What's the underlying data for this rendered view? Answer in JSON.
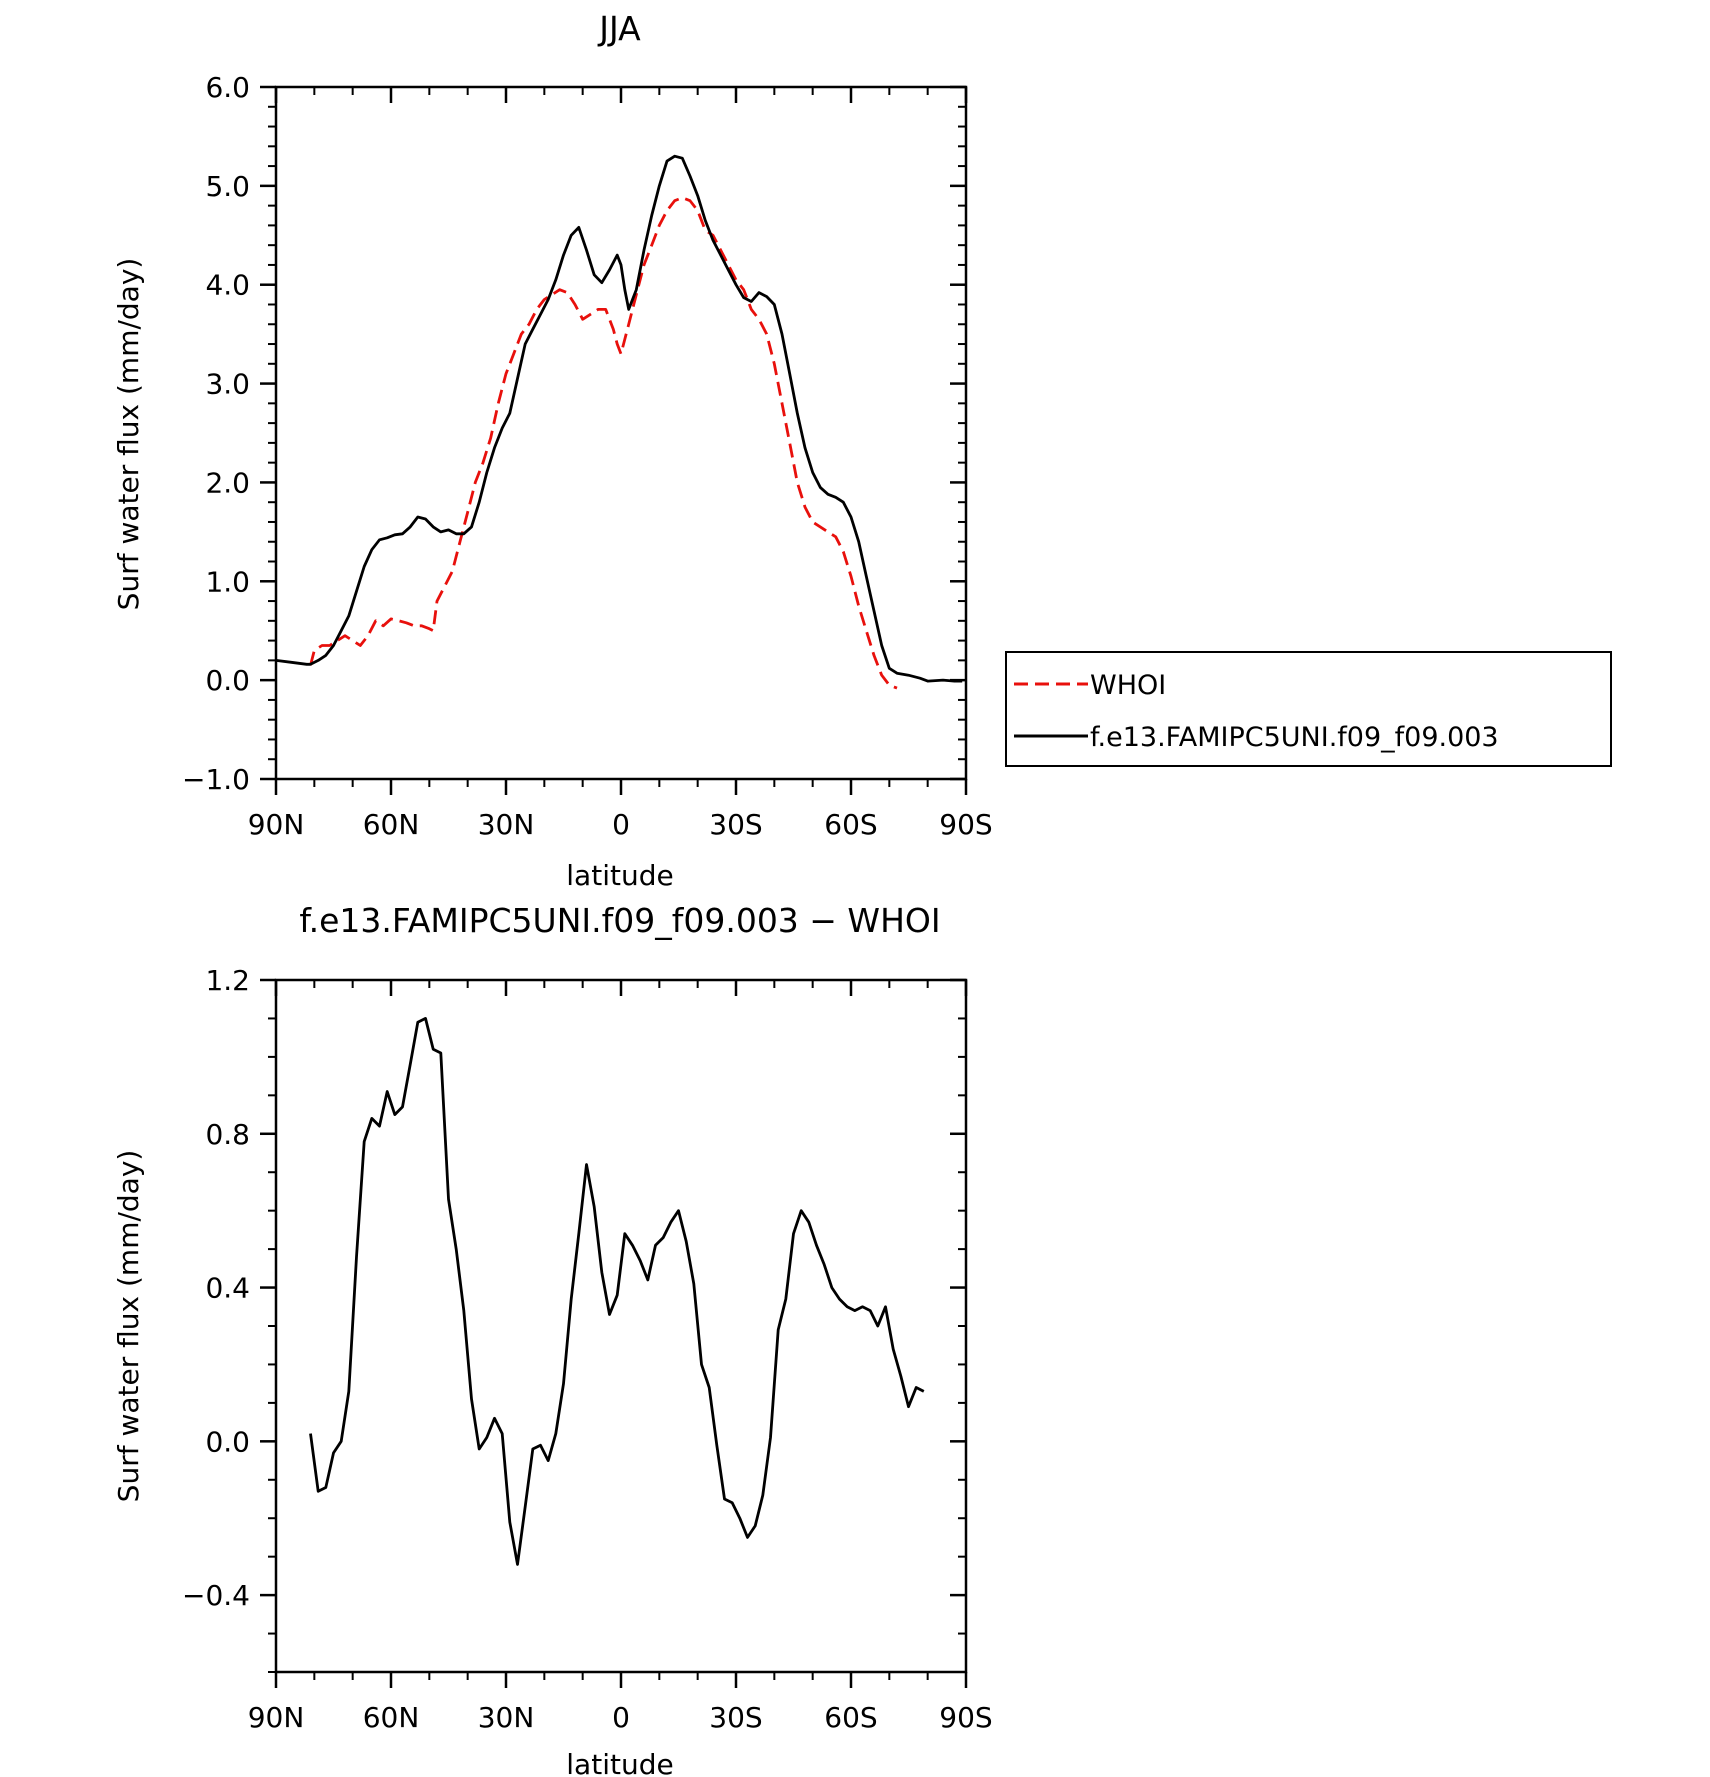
{
  "chart_data": [
    {
      "type": "line",
      "title": "JJA",
      "xlabel": "latitude",
      "ylabel": "Surf water flux (mm/day)",
      "xlim": [
        90,
        -90
      ],
      "ylim": [
        -1.0,
        6.0
      ],
      "xtick_values": [
        90,
        60,
        30,
        0,
        -30,
        -60,
        -90
      ],
      "xtick_labels": [
        "90N",
        "60N",
        "30N",
        "0",
        "30S",
        "60S",
        "90S"
      ],
      "ytick_values": [
        -1,
        0,
        1,
        2,
        3,
        4,
        5,
        6
      ],
      "ytick_labels": [
        "−1.0",
        "0.0",
        "1.0",
        "2.0",
        "3.0",
        "4.0",
        "5.0",
        "6.0"
      ],
      "grid": false,
      "legend": "right, outside plot",
      "series": [
        {
          "name": "WHOI",
          "color": "#e8100c",
          "dash": true,
          "points": [
            [
              81,
              0.15
            ],
            [
              80,
              0.3
            ],
            [
              78,
              0.35
            ],
            [
              76,
              0.35
            ],
            [
              74,
              0.4
            ],
            [
              72,
              0.45
            ],
            [
              70,
              0.4
            ],
            [
              68,
              0.35
            ],
            [
              66,
              0.45
            ],
            [
              64,
              0.6
            ],
            [
              62,
              0.55
            ],
            [
              60,
              0.62
            ],
            [
              58,
              0.6
            ],
            [
              56,
              0.58
            ],
            [
              54,
              0.55
            ],
            [
              52,
              0.55
            ],
            [
              50,
              0.52
            ],
            [
              49,
              0.5
            ],
            [
              48,
              0.8
            ],
            [
              46,
              0.95
            ],
            [
              44,
              1.1
            ],
            [
              42,
              1.4
            ],
            [
              40,
              1.7
            ],
            [
              38,
              2.0
            ],
            [
              36,
              2.2
            ],
            [
              34,
              2.45
            ],
            [
              32,
              2.8
            ],
            [
              30,
              3.1
            ],
            [
              28,
              3.3
            ],
            [
              26,
              3.5
            ],
            [
              24,
              3.6
            ],
            [
              22,
              3.75
            ],
            [
              20,
              3.85
            ],
            [
              18,
              3.9
            ],
            [
              16,
              3.95
            ],
            [
              14,
              3.92
            ],
            [
              12,
              3.8
            ],
            [
              10,
              3.65
            ],
            [
              8,
              3.7
            ],
            [
              6,
              3.75
            ],
            [
              4,
              3.75
            ],
            [
              2,
              3.55
            ],
            [
              1,
              3.4
            ],
            [
              0,
              3.3
            ],
            [
              -2,
              3.6
            ],
            [
              -4,
              3.9
            ],
            [
              -6,
              4.2
            ],
            [
              -8,
              4.4
            ],
            [
              -10,
              4.6
            ],
            [
              -12,
              4.75
            ],
            [
              -14,
              4.85
            ],
            [
              -16,
              4.88
            ],
            [
              -18,
              4.85
            ],
            [
              -20,
              4.75
            ],
            [
              -22,
              4.55
            ],
            [
              -24,
              4.5
            ],
            [
              -26,
              4.35
            ],
            [
              -28,
              4.2
            ],
            [
              -30,
              4.05
            ],
            [
              -32,
              3.95
            ],
            [
              -34,
              3.75
            ],
            [
              -36,
              3.65
            ],
            [
              -38,
              3.5
            ],
            [
              -40,
              3.2
            ],
            [
              -42,
              2.8
            ],
            [
              -44,
              2.4
            ],
            [
              -46,
              2.0
            ],
            [
              -48,
              1.75
            ],
            [
              -50,
              1.6
            ],
            [
              -52,
              1.55
            ],
            [
              -54,
              1.5
            ],
            [
              -56,
              1.45
            ],
            [
              -58,
              1.3
            ],
            [
              -60,
              1.05
            ],
            [
              -62,
              0.75
            ],
            [
              -64,
              0.5
            ],
            [
              -66,
              0.25
            ],
            [
              -68,
              0.05
            ],
            [
              -70,
              -0.05
            ],
            [
              -72,
              -0.08
            ]
          ]
        },
        {
          "name": "f.e13.FAMIPC5UNI.f09_f09.003",
          "color": "#000000",
          "dash": false,
          "points": [
            [
              90,
              0.2
            ],
            [
              86,
              0.18
            ],
            [
              82,
              0.16
            ],
            [
              81,
              0.16
            ],
            [
              79,
              0.2
            ],
            [
              77,
              0.25
            ],
            [
              75,
              0.35
            ],
            [
              73,
              0.5
            ],
            [
              71,
              0.65
            ],
            [
              69,
              0.9
            ],
            [
              67,
              1.15
            ],
            [
              65,
              1.32
            ],
            [
              63,
              1.42
            ],
            [
              61,
              1.44
            ],
            [
              59,
              1.47
            ],
            [
              57,
              1.48
            ],
            [
              55,
              1.55
            ],
            [
              53,
              1.65
            ],
            [
              51,
              1.63
            ],
            [
              49,
              1.55
            ],
            [
              47,
              1.5
            ],
            [
              45,
              1.52
            ],
            [
              43,
              1.48
            ],
            [
              41,
              1.48
            ],
            [
              39,
              1.55
            ],
            [
              37,
              1.8
            ],
            [
              35,
              2.1
            ],
            [
              33,
              2.35
            ],
            [
              31,
              2.55
            ],
            [
              29,
              2.7
            ],
            [
              27,
              3.05
            ],
            [
              25,
              3.4
            ],
            [
              23,
              3.55
            ],
            [
              21,
              3.7
            ],
            [
              19,
              3.85
            ],
            [
              17,
              4.05
            ],
            [
              15,
              4.3
            ],
            [
              13,
              4.5
            ],
            [
              11,
              4.58
            ],
            [
              9,
              4.35
            ],
            [
              7,
              4.1
            ],
            [
              5,
              4.02
            ],
            [
              3,
              4.15
            ],
            [
              1,
              4.3
            ],
            [
              0,
              4.2
            ],
            [
              -1,
              3.95
            ],
            [
              -2,
              3.75
            ],
            [
              -4,
              3.95
            ],
            [
              -6,
              4.35
            ],
            [
              -8,
              4.7
            ],
            [
              -10,
              5.0
            ],
            [
              -12,
              5.25
            ],
            [
              -14,
              5.3
            ],
            [
              -16,
              5.28
            ],
            [
              -18,
              5.1
            ],
            [
              -20,
              4.9
            ],
            [
              -22,
              4.65
            ],
            [
              -24,
              4.45
            ],
            [
              -26,
              4.3
            ],
            [
              -28,
              4.15
            ],
            [
              -30,
              4.0
            ],
            [
              -32,
              3.87
            ],
            [
              -34,
              3.83
            ],
            [
              -36,
              3.92
            ],
            [
              -38,
              3.88
            ],
            [
              -40,
              3.8
            ],
            [
              -42,
              3.5
            ],
            [
              -44,
              3.1
            ],
            [
              -46,
              2.7
            ],
            [
              -48,
              2.35
            ],
            [
              -50,
              2.1
            ],
            [
              -52,
              1.95
            ],
            [
              -54,
              1.88
            ],
            [
              -56,
              1.85
            ],
            [
              -58,
              1.8
            ],
            [
              -60,
              1.65
            ],
            [
              -62,
              1.4
            ],
            [
              -64,
              1.05
            ],
            [
              -66,
              0.7
            ],
            [
              -68,
              0.35
            ],
            [
              -70,
              0.12
            ],
            [
              -72,
              0.07
            ],
            [
              -75,
              0.05
            ],
            [
              -78,
              0.02
            ],
            [
              -80,
              -0.01
            ],
            [
              -84,
              0.0
            ],
            [
              -87,
              -0.01
            ],
            [
              -89,
              -0.01
            ]
          ]
        }
      ]
    },
    {
      "type": "line",
      "title": "f.e13.FAMIPC5UNI.f09_f09.003 − WHOI",
      "xlabel": "latitude",
      "ylabel": "Surf water flux (mm/day)",
      "xlim": [
        90,
        -90
      ],
      "ylim": [
        -0.6,
        1.2
      ],
      "xtick_values": [
        90,
        60,
        30,
        0,
        -30,
        -60,
        -90
      ],
      "xtick_labels": [
        "90N",
        "60N",
        "30N",
        "0",
        "30S",
        "60S",
        "90S"
      ],
      "ytick_values": [
        -0.4,
        0.0,
        0.4,
        0.8,
        1.2
      ],
      "ytick_labels": [
        "−0.4",
        "0.0",
        "0.4",
        "0.8",
        "1.2"
      ],
      "grid": false,
      "series": [
        {
          "color": "#000000",
          "dash": false,
          "points": [
            [
              81,
              0.02
            ],
            [
              79,
              -0.13
            ],
            [
              77,
              -0.12
            ],
            [
              75,
              -0.03
            ],
            [
              73,
              0.0
            ],
            [
              71,
              0.13
            ],
            [
              69,
              0.48
            ],
            [
              67,
              0.78
            ],
            [
              65,
              0.84
            ],
            [
              63,
              0.82
            ],
            [
              61,
              0.91
            ],
            [
              59,
              0.85
            ],
            [
              57,
              0.87
            ],
            [
              55,
              0.98
            ],
            [
              53,
              1.09
            ],
            [
              51,
              1.1
            ],
            [
              49,
              1.02
            ],
            [
              47,
              1.01
            ],
            [
              45,
              0.63
            ],
            [
              43,
              0.5
            ],
            [
              41,
              0.34
            ],
            [
              39,
              0.11
            ],
            [
              37,
              -0.02
            ],
            [
              35,
              0.01
            ],
            [
              33,
              0.06
            ],
            [
              31,
              0.02
            ],
            [
              29,
              -0.21
            ],
            [
              27,
              -0.32
            ],
            [
              25,
              -0.17
            ],
            [
              23,
              -0.02
            ],
            [
              21,
              -0.01
            ],
            [
              19,
              -0.05
            ],
            [
              17,
              0.02
            ],
            [
              15,
              0.15
            ],
            [
              13,
              0.37
            ],
            [
              11,
              0.54
            ],
            [
              9,
              0.72
            ],
            [
              7,
              0.61
            ],
            [
              5,
              0.44
            ],
            [
              3,
              0.33
            ],
            [
              1,
              0.38
            ],
            [
              -1,
              0.54
            ],
            [
              -3,
              0.51
            ],
            [
              -5,
              0.47
            ],
            [
              -7,
              0.42
            ],
            [
              -9,
              0.51
            ],
            [
              -11,
              0.53
            ],
            [
              -13,
              0.57
            ],
            [
              -15,
              0.6
            ],
            [
              -17,
              0.52
            ],
            [
              -19,
              0.41
            ],
            [
              -21,
              0.2
            ],
            [
              -23,
              0.14
            ],
            [
              -25,
              -0.01
            ],
            [
              -27,
              -0.15
            ],
            [
              -29,
              -0.16
            ],
            [
              -31,
              -0.2
            ],
            [
              -33,
              -0.25
            ],
            [
              -35,
              -0.22
            ],
            [
              -37,
              -0.14
            ],
            [
              -39,
              0.01
            ],
            [
              -41,
              0.29
            ],
            [
              -43,
              0.37
            ],
            [
              -45,
              0.54
            ],
            [
              -47,
              0.6
            ],
            [
              -49,
              0.57
            ],
            [
              -51,
              0.51
            ],
            [
              -53,
              0.46
            ],
            [
              -55,
              0.4
            ],
            [
              -57,
              0.37
            ],
            [
              -59,
              0.35
            ],
            [
              -61,
              0.34
            ],
            [
              -63,
              0.35
            ],
            [
              -65,
              0.34
            ],
            [
              -67,
              0.3
            ],
            [
              -69,
              0.35
            ],
            [
              -71,
              0.24
            ],
            [
              -73,
              0.17
            ],
            [
              -75,
              0.09
            ],
            [
              -77,
              0.14
            ],
            [
              -79,
              0.13
            ]
          ]
        }
      ]
    }
  ]
}
